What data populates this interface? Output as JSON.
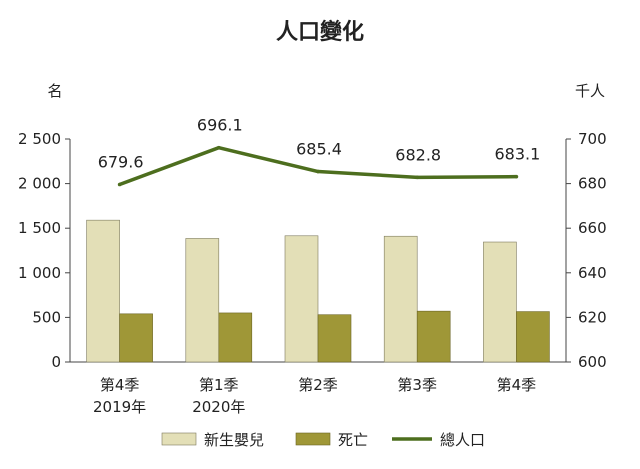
{
  "chart_data": {
    "type": "bar",
    "title": "人口變化",
    "ylabel_left": "名",
    "ylabel_right": "千人",
    "categories": [
      [
        "第4季",
        "2019年"
      ],
      [
        "第1季",
        "2020年"
      ],
      [
        "第2季"
      ],
      [
        "第3季"
      ],
      [
        "第4季"
      ]
    ],
    "ylim_left": [
      0,
      2500
    ],
    "yticks_left": [
      0,
      500,
      1000,
      1500,
      2000,
      2500
    ],
    "yticklabels_left": [
      "0",
      "500",
      "1 000",
      "1 500",
      "2 000",
      "2 500"
    ],
    "ylim_right": [
      600,
      700
    ],
    "yticks_right": [
      600,
      620,
      640,
      660,
      680,
      700
    ],
    "yticklabels_right": [
      "600",
      "620",
      "640",
      "660",
      "680",
      "700"
    ],
    "series": [
      {
        "name": "新生嬰兒",
        "type": "bar",
        "axis": "left",
        "color": "#e3dfb7",
        "values": [
          1590,
          1385,
          1415,
          1410,
          1345
        ]
      },
      {
        "name": "死亡",
        "type": "bar",
        "axis": "left",
        "color": "#9f9737",
        "values": [
          540,
          550,
          530,
          570,
          565
        ]
      },
      {
        "name": "總人口",
        "type": "line",
        "axis": "right",
        "color": "#4d6e1e",
        "values": [
          679.6,
          696.1,
          685.4,
          682.8,
          683.1
        ],
        "labels": [
          "679.6",
          "696.1",
          "685.4",
          "682.8",
          "683.1"
        ]
      }
    ]
  }
}
